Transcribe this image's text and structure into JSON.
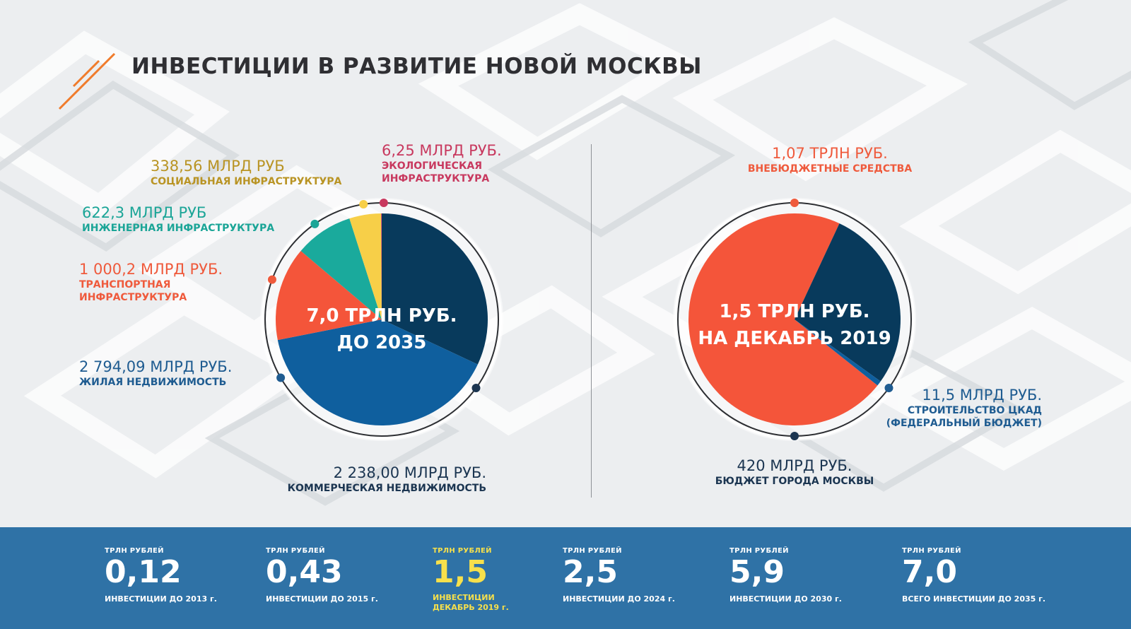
{
  "title": "ИНВЕСТИЦИИ В РАЗВИТИЕ НОВОЙ МОСКВЫ",
  "chart_data": [
    {
      "type": "pie",
      "title": "7,0 ТРЛН РУБ. ДО 2035",
      "center_lines": [
        "7,0 ТРЛН РУБ.",
        "ДО 2035"
      ],
      "slices": [
        {
          "key": "commercial",
          "value_text": "2 238,00 МЛРД РУБ.",
          "category": "КОММЕРЧЕСКАЯ НЕДВИЖИМОСТЬ",
          "value": 2238.0,
          "color": "#083a5c"
        },
        {
          "key": "housing",
          "value_text": "2 794,09 МЛРД РУБ.",
          "category": "ЖИЛАЯ НЕДВИЖИМОСТЬ",
          "value": 2794.09,
          "color": "#0f5f9e"
        },
        {
          "key": "transport",
          "value_text": "1 000,2 МЛРД РУБ.",
          "category_lines": [
            "ТРАНСПОРТНАЯ",
            "ИНФРАСТРУКТУРА"
          ],
          "value": 1000.2,
          "color": "#f4553a"
        },
        {
          "key": "engineering",
          "value_text": "622,3 МЛРД РУБ",
          "category": "ИНЖЕНЕРНАЯ ИНФРАСТРУКТУРА",
          "value": 622.3,
          "color": "#1aaa9c"
        },
        {
          "key": "social",
          "value_text": "338,56 МЛРД РУБ",
          "category": "СОЦИАЛЬНАЯ ИНФРАСТРУКТУРА",
          "value": 338.56,
          "color": "#f7cf48"
        },
        {
          "key": "ecology",
          "value_text": "6,25 МЛРД РУБ.",
          "category_lines": [
            "ЭКОЛОГИЧЕСКАЯ",
            "ИНФРАСТРУКТУРА"
          ],
          "value": 6.25,
          "color": "#d63b6e"
        }
      ],
      "label_colors": {
        "commercial": "#1b3551",
        "housing": "#1f5c91",
        "transport": "#ef5a3c",
        "engineering": "#1ba597",
        "social": "#b99424",
        "ecology": "#c8395f"
      }
    },
    {
      "type": "pie",
      "title": "1,5 ТРЛН РУБ. НА ДЕКАБРЬ 2019",
      "center_lines": [
        "1,5 ТРЛН РУБ.",
        "НА ДЕКАБРЬ 2019"
      ],
      "slices": [
        {
          "key": "offbudget",
          "value_text": "1,07 ТРЛН РУБ.",
          "category": "ВНЕБЮДЖЕТНЫЕ СРЕДСТВА",
          "value": 1070,
          "color": "#f4553a"
        },
        {
          "key": "moscow",
          "value_text": "420 МЛРД РУБ.",
          "category": "БЮДЖЕТ ГОРОДА МОСКВЫ",
          "value": 420,
          "color": "#083a5c"
        },
        {
          "key": "tskad",
          "value_text": "11,5 МЛРД РУБ.",
          "category_lines": [
            "СТРОИТЕЛЬСТВО ЦКАД",
            "(ФЕДЕРАЛЬНЫЙ БЮДЖЕТ)"
          ],
          "value": 11.5,
          "color": "#0f5f9e"
        }
      ],
      "label_colors": {
        "offbudget": "#ef5a3c",
        "moscow": "#1b3551",
        "tskad": "#1f5c91"
      }
    }
  ],
  "stats": [
    {
      "unit": "ТРЛН РУБЛЕЙ",
      "value": "0,12",
      "desc": "ИНВЕСТИЦИИ ДО 2013 г."
    },
    {
      "unit": "ТРЛН РУБЛЕЙ",
      "value": "0,43",
      "desc": "ИНВЕСТИЦИИ ДО 2015 г."
    },
    {
      "unit": "ТРЛН РУБЛЕЙ",
      "value": "1,5",
      "desc_lines": [
        "ИНВЕСТИЦИИ",
        "ДЕКАБРЬ 2019 г."
      ]
    },
    {
      "unit": "ТРЛН РУБЛЕЙ",
      "value": "2,5",
      "desc": "ИНВЕСТИЦИИ ДО 2024 г."
    },
    {
      "unit": "ТРЛН РУБЛЕЙ",
      "value": "5,9",
      "desc": "ИНВЕСТИЦИИ ДО 2030 г."
    },
    {
      "unit": "ТРЛН РУБЛЕЙ",
      "value": "7,0",
      "desc": "ВСЕГО ИНВЕСТИЦИИ ДО 2035 г."
    }
  ],
  "colors": {
    "band": "#2f72a6",
    "highlight": "#f7e04b",
    "accent": "#f07b2b",
    "title": "#2f2f33"
  }
}
